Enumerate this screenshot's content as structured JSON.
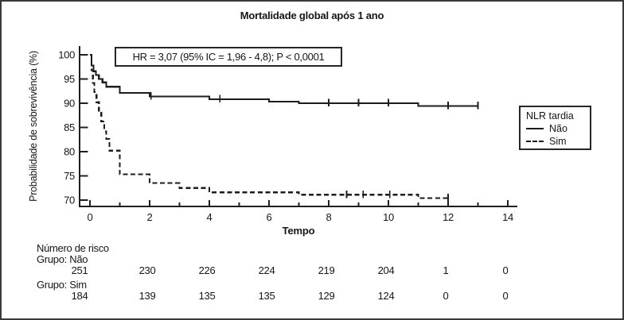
{
  "chart_data": {
    "type": "line",
    "subtype": "kaplan-meier-step",
    "title": "Mortalidade global após 1 ano",
    "xlabel": "Tempo",
    "ylabel": "Probabilidade de sobrevivência (%)",
    "xlim": [
      0,
      14
    ],
    "ylim": [
      70,
      100
    ],
    "xticks_major": [
      0,
      2,
      4,
      6,
      8,
      10,
      12,
      14
    ],
    "xticks_minor": [
      1,
      3,
      5,
      7,
      9,
      11,
      13
    ],
    "yticks": [
      100,
      95,
      90,
      85,
      80,
      75,
      70
    ],
    "grid": false,
    "annotation": "HR = 3,07 (95% IC = 1,96 - 4,8); P < 0,0001",
    "legend": {
      "title": "NLR tardia",
      "position": "right",
      "entries": [
        {
          "label": "Não",
          "style": "solid"
        },
        {
          "label": "Sim",
          "style": "dashed"
        }
      ]
    },
    "colors": {
      "line": "#1c1c1c",
      "axis": "#202020",
      "background": "#ffffff"
    },
    "series": [
      {
        "name": "Não",
        "style": "solid",
        "points": [
          [
            0,
            100
          ],
          [
            0.05,
            97.8
          ],
          [
            0.12,
            96.6
          ],
          [
            0.2,
            95.8
          ],
          [
            0.3,
            95.0
          ],
          [
            0.42,
            94.3
          ],
          [
            0.55,
            93.4
          ],
          [
            1.0,
            92.1
          ],
          [
            2.0,
            91.4
          ],
          [
            4.0,
            90.8
          ],
          [
            6.0,
            90.3
          ],
          [
            7.0,
            90.0
          ],
          [
            11.0,
            89.4
          ]
        ],
        "end_time": 13.0,
        "censors": [
          [
            2.05,
            91.4
          ],
          [
            4.35,
            90.8
          ],
          [
            8.0,
            90.0
          ],
          [
            9.0,
            90.0
          ],
          [
            10.0,
            90.0
          ],
          [
            12.0,
            89.4
          ],
          [
            13.0,
            89.4
          ]
        ]
      },
      {
        "name": "Sim",
        "style": "dashed",
        "points": [
          [
            0,
            100
          ],
          [
            0.05,
            96.8
          ],
          [
            0.1,
            94.2
          ],
          [
            0.15,
            92.3
          ],
          [
            0.22,
            90.2
          ],
          [
            0.3,
            88.2
          ],
          [
            0.38,
            86.2
          ],
          [
            0.48,
            84.2
          ],
          [
            0.55,
            82.6
          ],
          [
            0.65,
            80.2
          ],
          [
            1.0,
            75.3
          ],
          [
            2.0,
            73.5
          ],
          [
            3.0,
            72.5
          ],
          [
            4.0,
            71.6
          ],
          [
            7.0,
            71.1
          ],
          [
            11.0,
            70.4
          ]
        ],
        "end_time": 12.0,
        "censors": [
          [
            8.6,
            71.1
          ],
          [
            9.15,
            71.1
          ],
          [
            10.05,
            71.1
          ],
          [
            12.0,
            70.4
          ]
        ]
      }
    ],
    "risk_table": {
      "title": "Número de risco",
      "times": [
        0,
        2,
        4,
        6,
        8,
        10,
        12,
        14
      ],
      "groups": [
        {
          "label": "Grupo: Não",
          "counts": [
            "251",
            "230",
            "226",
            "224",
            "219",
            "204",
            "1",
            "0"
          ]
        },
        {
          "label": "Grupo: Sim",
          "counts": [
            "184",
            "139",
            "135",
            "135",
            "129",
            "124",
            "0",
            "0"
          ]
        }
      ]
    }
  }
}
